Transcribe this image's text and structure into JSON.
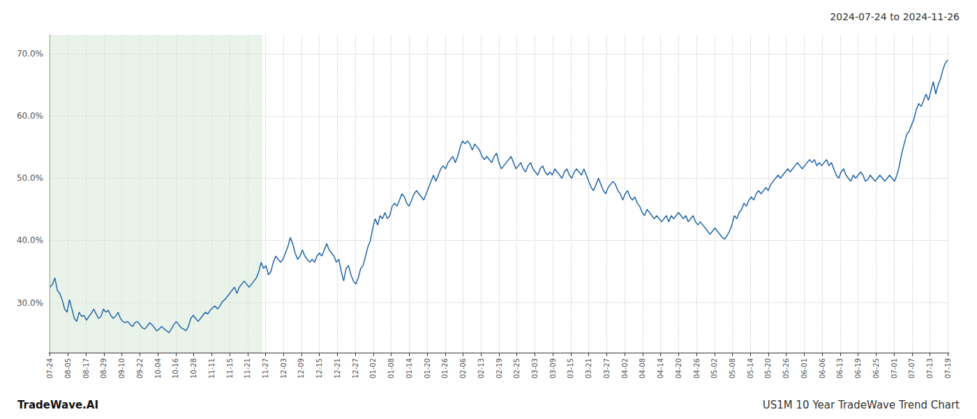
{
  "chart_data": {
    "type": "line",
    "title": "2024-07-24 to 2024-11-26",
    "annotations": [
      "TradeWave.AI",
      "US1M 10 Year TradeWave Trend Chart"
    ],
    "color": "#2266aa",
    "grid": true,
    "shaded_region": {
      "start": 0,
      "end": 87,
      "color": "#d8ead8"
    },
    "xlim": [
      -0.5,
      370.5
    ],
    "xticks": [
      {
        "value": 0,
        "label": "07-24"
      },
      {
        "value": 7.4,
        "label": "08-05"
      },
      {
        "value": 14.8,
        "label": "08-17"
      },
      {
        "value": 22.2,
        "label": "08-29"
      },
      {
        "value": 29.6,
        "label": "09-10"
      },
      {
        "value": 37,
        "label": "09-22"
      },
      {
        "value": 44.4,
        "label": "10-04"
      },
      {
        "value": 51.8,
        "label": "10-16"
      },
      {
        "value": 59.2,
        "label": "10-28"
      },
      {
        "value": 66.6,
        "label": "11-11"
      },
      {
        "value": 74,
        "label": "11-15"
      },
      {
        "value": 81.4,
        "label": "11-21"
      },
      {
        "value": 88.8,
        "label": "11-27"
      },
      {
        "value": 96.2,
        "label": "12-03"
      },
      {
        "value": 103.6,
        "label": "12-09"
      },
      {
        "value": 111,
        "label": "12-15"
      },
      {
        "value": 118.4,
        "label": "12-21"
      },
      {
        "value": 125.8,
        "label": "12-27"
      },
      {
        "value": 133.2,
        "label": "01-02"
      },
      {
        "value": 140.6,
        "label": "01-08"
      },
      {
        "value": 148,
        "label": "01-14"
      },
      {
        "value": 155.4,
        "label": "01-20"
      },
      {
        "value": 162.8,
        "label": "01-26"
      },
      {
        "value": 170.2,
        "label": "02-06"
      },
      {
        "value": 177.6,
        "label": "02-13"
      },
      {
        "value": 185,
        "label": "02-19"
      },
      {
        "value": 192.4,
        "label": "02-25"
      },
      {
        "value": 199.8,
        "label": "03-03"
      },
      {
        "value": 207.2,
        "label": "03-09"
      },
      {
        "value": 214.6,
        "label": "03-15"
      },
      {
        "value": 222,
        "label": "03-21"
      },
      {
        "value": 229.4,
        "label": "03-27"
      },
      {
        "value": 236.8,
        "label": "04-02"
      },
      {
        "value": 244.2,
        "label": "04-08"
      },
      {
        "value": 251.6,
        "label": "04-14"
      },
      {
        "value": 259,
        "label": "04-20"
      },
      {
        "value": 266.4,
        "label": "04-26"
      },
      {
        "value": 273.8,
        "label": "05-02"
      },
      {
        "value": 281.2,
        "label": "05-08"
      },
      {
        "value": 288.6,
        "label": "05-14"
      },
      {
        "value": 296,
        "label": "05-20"
      },
      {
        "value": 303.4,
        "label": "05-26"
      },
      {
        "value": 310.8,
        "label": "06-01"
      },
      {
        "value": 318.2,
        "label": "06-06"
      },
      {
        "value": 325.6,
        "label": "06-13"
      },
      {
        "value": 333,
        "label": "06-19"
      },
      {
        "value": 340.4,
        "label": "06-25"
      },
      {
        "value": 347.8,
        "label": "07-01"
      },
      {
        "value": 355.2,
        "label": "07-07"
      },
      {
        "value": 362.6,
        "label": "07-13"
      },
      {
        "value": 370,
        "label": "07-19"
      }
    ],
    "ylim": [
      22,
      73
    ],
    "yticks": [
      {
        "value": 30,
        "label": "30.0%"
      },
      {
        "value": 40,
        "label": "40.0%"
      },
      {
        "value": 50,
        "label": "50.0%"
      },
      {
        "value": 60,
        "label": "60.0%"
      },
      {
        "value": 70,
        "label": "70.0%"
      }
    ],
    "values": [
      32.5,
      33.0,
      34.0,
      32.0,
      31.5,
      30.5,
      29.0,
      28.5,
      30.5,
      29.0,
      27.5,
      27.0,
      28.5,
      27.8,
      28.0,
      27.2,
      27.8,
      28.3,
      29.0,
      28.2,
      27.5,
      27.8,
      29.0,
      28.5,
      28.8,
      28.0,
      27.5,
      27.8,
      28.5,
      27.5,
      27.0,
      26.8,
      27.0,
      26.5,
      26.2,
      26.8,
      27.0,
      26.5,
      26.0,
      25.8,
      26.2,
      26.8,
      26.5,
      26.0,
      25.5,
      25.8,
      26.2,
      25.8,
      25.5,
      25.2,
      25.8,
      26.5,
      27.0,
      26.5,
      26.0,
      25.8,
      25.5,
      26.2,
      27.5,
      28.0,
      27.5,
      27.0,
      27.5,
      28.0,
      28.5,
      28.2,
      28.8,
      29.2,
      29.5,
      29.0,
      29.5,
      30.2,
      30.5,
      31.0,
      31.5,
      32.0,
      32.5,
      31.5,
      32.5,
      33.0,
      33.5,
      33.0,
      32.5,
      33.0,
      33.5,
      34.0,
      35.0,
      36.5,
      35.5,
      36.0,
      34.5,
      35.0,
      36.5,
      37.5,
      37.0,
      36.5,
      37.0,
      38.0,
      39.0,
      40.5,
      39.5,
      38.0,
      37.0,
      37.5,
      38.5,
      37.5,
      37.0,
      36.5,
      37.0,
      36.5,
      37.5,
      38.0,
      37.5,
      38.5,
      39.5,
      38.5,
      38.0,
      37.5,
      36.5,
      37.0,
      35.0,
      33.5,
      35.5,
      36.0,
      34.5,
      33.5,
      33.0,
      34.0,
      35.5,
      36.0,
      37.5,
      39.0,
      40.0,
      42.0,
      43.5,
      42.5,
      44.0,
      43.5,
      44.5,
      43.5,
      44.0,
      45.5,
      46.0,
      45.5,
      46.5,
      47.5,
      47.0,
      46.0,
      45.5,
      46.5,
      47.5,
      48.0,
      47.5,
      47.0,
      46.5,
      47.5,
      48.5,
      49.5,
      50.5,
      49.5,
      50.5,
      51.5,
      52.0,
      51.5,
      52.5,
      53.0,
      53.5,
      52.5,
      53.5,
      55.0,
      56.0,
      55.5,
      56.0,
      55.5,
      54.5,
      55.5,
      55.0,
      54.5,
      53.5,
      53.0,
      53.5,
      53.0,
      52.5,
      53.5,
      54.0,
      52.5,
      51.5,
      52.0,
      52.5,
      53.0,
      53.5,
      52.5,
      51.5,
      52.0,
      52.5,
      51.5,
      51.0,
      52.0,
      52.5,
      51.5,
      51.0,
      50.5,
      51.5,
      52.0,
      51.0,
      50.5,
      51.0,
      50.5,
      51.5,
      51.0,
      50.5,
      50.0,
      51.0,
      51.5,
      50.5,
      50.0,
      51.0,
      51.5,
      51.0,
      50.5,
      51.5,
      50.5,
      49.5,
      48.5,
      48.0,
      49.0,
      50.0,
      49.0,
      48.0,
      47.5,
      48.5,
      49.0,
      49.5,
      49.0,
      48.0,
      47.5,
      46.5,
      47.5,
      48.0,
      47.0,
      46.5,
      47.0,
      46.0,
      45.5,
      44.5,
      44.0,
      45.0,
      44.5,
      44.0,
      43.5,
      44.0,
      43.5,
      43.0,
      43.5,
      44.0,
      43.0,
      44.0,
      43.5,
      44.0,
      44.5,
      44.0,
      43.5,
      44.0,
      43.0,
      43.5,
      44.0,
      43.0,
      42.5,
      43.0,
      42.5,
      42.0,
      41.5,
      41.0,
      41.5,
      42.0,
      41.5,
      41.0,
      40.5,
      40.2,
      40.8,
      41.5,
      42.5,
      44.0,
      43.5,
      44.5,
      45.0,
      46.0,
      45.5,
      46.5,
      47.0,
      46.5,
      47.5,
      48.0,
      47.5,
      48.0,
      48.5,
      48.0,
      49.0,
      49.5,
      50.0,
      50.5,
      50.0,
      50.5,
      51.0,
      51.5,
      51.0,
      51.5,
      52.0,
      52.5,
      52.0,
      51.5,
      52.0,
      52.5,
      53.0,
      52.5,
      53.0,
      52.0,
      52.5,
      52.0,
      52.5,
      53.0,
      52.0,
      52.5,
      51.5,
      50.5,
      50.0,
      51.0,
      51.5,
      50.5,
      50.0,
      49.5,
      50.5,
      50.0,
      50.5,
      51.0,
      50.5,
      49.5,
      49.8,
      50.5,
      50.0,
      49.5,
      50.0,
      50.5,
      50.0,
      49.5,
      50.0,
      50.5,
      50.0,
      49.5,
      50.5,
      52.0,
      54.0,
      55.5,
      57.0,
      57.5,
      58.5,
      59.5,
      61.0,
      62.0,
      61.5,
      62.5,
      63.5,
      62.5,
      64.0,
      65.5,
      63.5,
      65.0,
      66.0,
      67.5,
      68.5,
      69.0
    ]
  }
}
